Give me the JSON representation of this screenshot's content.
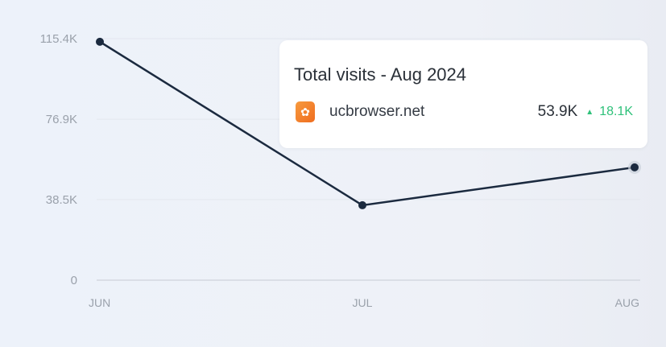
{
  "chart_data": {
    "type": "line",
    "categories": [
      "JUN",
      "JUL",
      "AUG"
    ],
    "series": [
      {
        "values": [
          113900,
          35800,
          53900
        ]
      }
    ],
    "yticks": [
      0,
      38500,
      76900,
      115400
    ],
    "ytick_labels": [
      "0",
      "38.5K",
      "76.9K",
      "115.4K"
    ],
    "ylim": [
      0,
      115400
    ],
    "grid": true,
    "line_color": "#1b2a3f"
  },
  "tooltip": {
    "title": "Total visits - Aug 2024",
    "domain": "ucbrowser.net",
    "value": "53.9K",
    "change_icon": "triangle-up-icon",
    "change": "18.1K",
    "change_color": "#2fc17a",
    "favicon_color": "#f28531"
  }
}
